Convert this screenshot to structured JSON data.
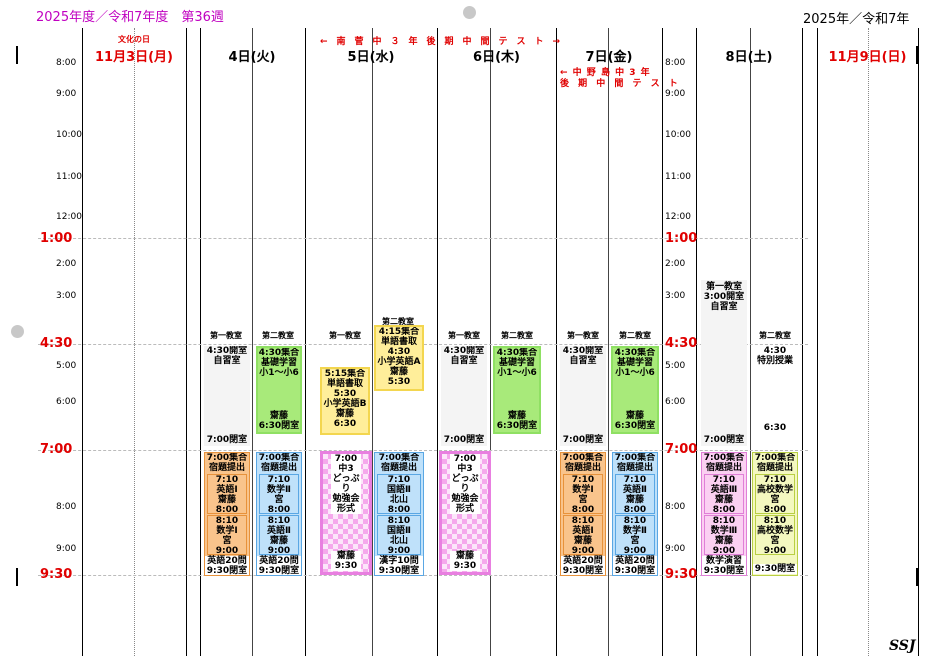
{
  "header": {
    "left_title": "2025年度／令和7年度　第36週",
    "right_title": "2025年／令和7年"
  },
  "days": [
    {
      "label": "11月3日(月)",
      "note": "文化の日"
    },
    {
      "label": "4日(火)"
    },
    {
      "label": "5日(水)"
    },
    {
      "label": "6日(木)"
    },
    {
      "label": "7日(金)"
    },
    {
      "label": "8日(土)"
    },
    {
      "label": "11月9日(日)"
    }
  ],
  "banners": {
    "exam_top": "←　南　菅　中　３　年　後　期　中　間　テ　ス　ト　→",
    "exam_fri_1": "← 中 野 島 中 3 年",
    "exam_fri_2": "後 期 中 間 テ ス ト"
  },
  "times": {
    "t800": "8:00",
    "t900": "9:00",
    "t1000": "10:00",
    "t1100": "11:00",
    "t1200": "12:00",
    "t100": "1:00",
    "t200": "2:00",
    "t300": "3:00",
    "t430": "4:30",
    "t500": "5:00",
    "t600": "6:00",
    "t700": "7:00",
    "t800b": "8:00",
    "t900b": "9:00",
    "t930": "9:30"
  },
  "rooms": {
    "room1": "第一教室",
    "room2": "第二教室"
  },
  "tue": {
    "r1_open": "4:30開室",
    "r1_self": "自習室",
    "r1_close": "7:00閉室",
    "r2_b1": "4:30集合",
    "r2_b2": "基礎学習",
    "r2_b3": "小1～小6",
    "r2_teacher": "齋藤",
    "r2_close": "6:30閉室",
    "e1_a": "7:00集合",
    "e1_b": "宿題提出",
    "e1_s1a": "7:10",
    "e1_s1b": "英語Ⅰ",
    "e1_s1c": "齋藤",
    "e1_s1d": "8:00",
    "e1_s2a": "8:10",
    "e1_s2b": "数学Ⅰ",
    "e1_s2c": "宮",
    "e1_s2d": "9:00",
    "e1_end1": "英語20問",
    "e1_end2": "9:30閉室",
    "e2_a": "7:00集合",
    "e2_b": "宿題提出",
    "e2_s1a": "7:10",
    "e2_s1b": "数学Ⅱ",
    "e2_s1c": "宮",
    "e2_s1d": "8:00",
    "e2_s2a": "8:10",
    "e2_s2b": "英語Ⅱ",
    "e2_s2c": "齋藤",
    "e2_s2d": "9:00",
    "e2_end1": "英語20問",
    "e2_end2": "9:30閉室"
  },
  "wed": {
    "y1_a": "5:15集合",
    "y1_b": "単語書取",
    "y1_c": "5:30",
    "y1_d": "小学英語B",
    "y1_e": "齋藤",
    "y1_f": "6:30",
    "y2_a": "4:15集合",
    "y2_b": "単語書取",
    "y2_c": "4:30",
    "y2_d": "小学英語A",
    "y2_e": "齋藤",
    "y2_f": "5:30",
    "p_a": "7:00",
    "p_b": "中3",
    "p_c": "どっぷり",
    "p_d": "勉強会形式",
    "p_e": "齋藤",
    "p_f": "9:30",
    "b_a": "7:00集合",
    "b_b": "宿題提出",
    "b_s1a": "7:10",
    "b_s1b": "国語Ⅱ",
    "b_s1c": "北山",
    "b_s1d": "8:00",
    "b_s2a": "8:10",
    "b_s2b": "国語Ⅱ",
    "b_s2c": "北山",
    "b_s2d": "9:00",
    "b_end1": "漢字10問",
    "b_end2": "9:30閉室"
  },
  "thu": {
    "r1_open": "4:30開室",
    "r1_self": "自習室",
    "r1_close": "7:00閉室",
    "r2_b1": "4:30集合",
    "r2_b2": "基礎学習",
    "r2_b3": "小1～小6",
    "r2_teacher": "齋藤",
    "r2_close": "6:30閉室",
    "p_a": "7:00",
    "p_b": "中3",
    "p_c": "どっぷり",
    "p_d": "勉強会形式",
    "p_e": "齋藤",
    "p_f": "9:30"
  },
  "fri": {
    "r1_open": "4:30開室",
    "r1_self": "自習室",
    "r1_close": "7:00閉室",
    "r2_b1": "4:30集合",
    "r2_b2": "基礎学習",
    "r2_b3": "小1～小6",
    "r2_teacher": "齋藤",
    "r2_close": "6:30閉室",
    "e1_a": "7:00集合",
    "e1_b": "宿題提出",
    "e1_s1a": "7:10",
    "e1_s1b": "数学Ⅰ",
    "e1_s1c": "宮",
    "e1_s1d": "8:00",
    "e1_s2a": "8:10",
    "e1_s2b": "英語Ⅰ",
    "e1_s2c": "齋藤",
    "e1_s2d": "9:00",
    "e1_end1": "英語20問",
    "e1_end2": "9:30閉室",
    "e2_a": "7:00集合",
    "e2_b": "宿題提出",
    "e2_s1a": "7:10",
    "e2_s1b": "英語Ⅱ",
    "e2_s1c": "齋藤",
    "e2_s1d": "8:00",
    "e2_s2a": "8:10",
    "e2_s2b": "数学Ⅱ",
    "e2_s2c": "宮",
    "e2_s2d": "9:00",
    "e2_end1": "英語20問",
    "e2_end2": "9:30閉室"
  },
  "sat": {
    "r1_room": "第一教室",
    "r1_open": "3:00開室",
    "r1_self": "自習室",
    "r1_close": "7:00閉室",
    "r2_time": "4:30",
    "r2_label": "特別授業",
    "r2_end": "6:30",
    "e1_a": "7:00集合",
    "e1_b": "宿題提出",
    "e1_s1a": "7:10",
    "e1_s1b": "英語Ⅲ",
    "e1_s1c": "齋藤",
    "e1_s1d": "8:00",
    "e1_s2a": "8:10",
    "e1_s2b": "数学Ⅲ",
    "e1_s2c": "齋藤",
    "e1_s2d": "9:00",
    "e1_end1": "数学演習",
    "e1_end2": "9:30閉室",
    "e2_a": "7:00集合",
    "e2_b": "宿題提出",
    "e2_s1a": "7:10",
    "e2_s1b": "高校数学",
    "e2_s1c": "宮",
    "e2_s1d": "8:00",
    "e2_s2a": "8:10",
    "e2_s2b": "高校数学",
    "e2_s2c": "宮",
    "e2_s2d": "9:00",
    "e2_end1": "9:30閉室"
  },
  "footer": {
    "mark": "SSJ"
  }
}
